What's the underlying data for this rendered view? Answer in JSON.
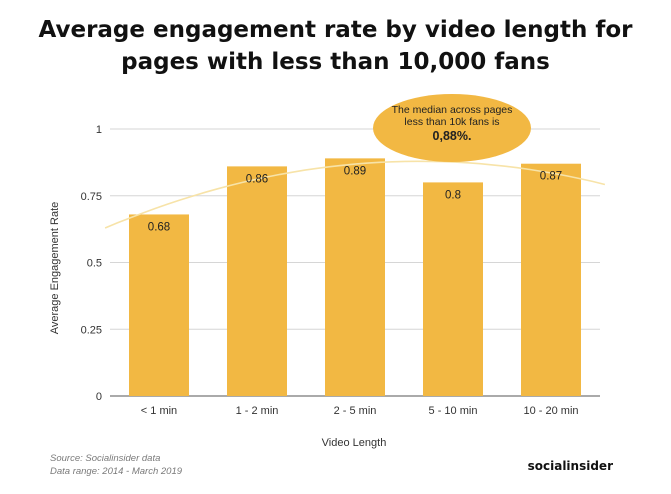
{
  "title": {
    "line1": "Average engagement rate by video length for",
    "line2": "pages with less than 10,000 fans"
  },
  "chart_data": {
    "type": "bar",
    "categories": [
      "< 1 min",
      "1 - 2 min",
      "2 - 5 min",
      "5 - 10 min",
      "10 - 20 min"
    ],
    "values": [
      0.68,
      0.86,
      0.89,
      0.8,
      0.87
    ],
    "value_labels": [
      "0.68",
      "0.86",
      "0.89",
      "0.8",
      "0.87"
    ],
    "xlabel": "Video Length",
    "ylabel": "Average Engagement Rate",
    "ylim": [
      0,
      1
    ],
    "yticks": [
      0,
      0.25,
      0.5,
      0.75,
      1
    ],
    "ytick_labels": [
      "0",
      "0.25",
      "0.5",
      "0.75",
      "1"
    ],
    "grid": true,
    "trendline": true,
    "bar_color": "#f2b843",
    "trend_color": "#f7e3a8",
    "annotation": {
      "line1": "The median across pages",
      "line2": "less than 10k fans is",
      "line3": "0,88%.",
      "color": "#f2b843"
    }
  },
  "footer": {
    "source": "Source: Socialinsider data",
    "range": "Data range: 2014 - March 2019"
  },
  "brand": "socialinsider"
}
